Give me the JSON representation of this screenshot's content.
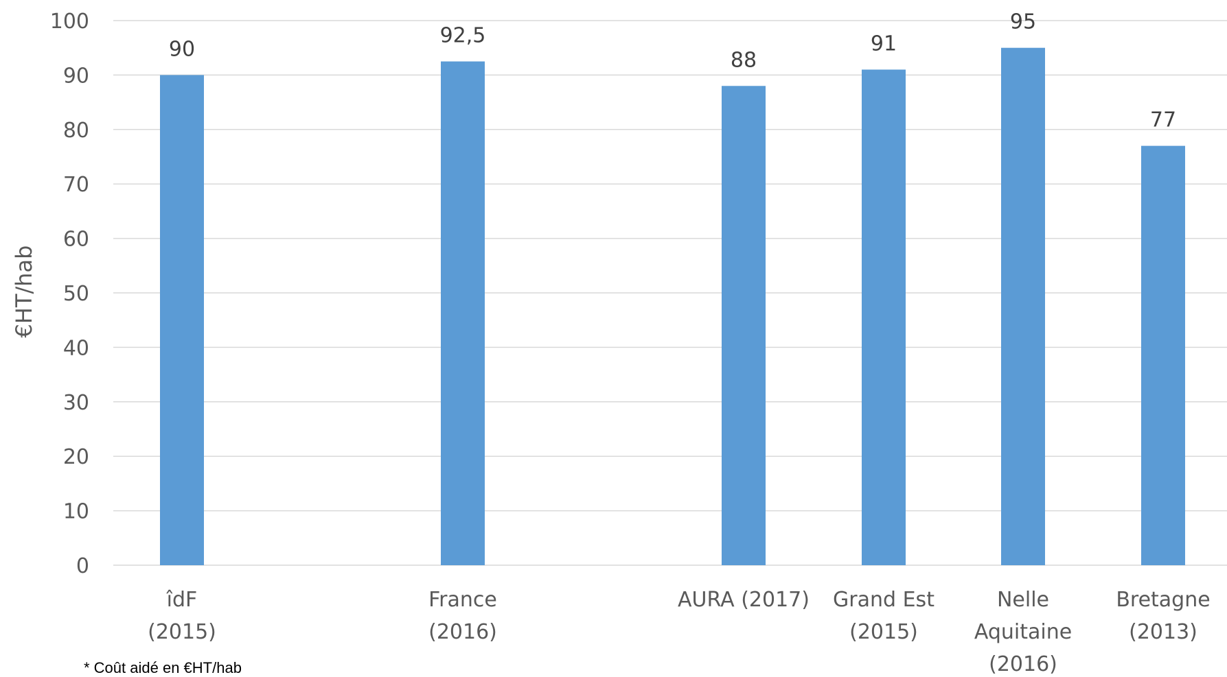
{
  "chart_data": {
    "type": "bar",
    "categories": [
      [
        "îdF",
        "(2015)"
      ],
      [
        "France",
        "(2016)"
      ],
      [
        "AURA (2017)"
      ],
      [
        "Grand Est",
        "(2015)"
      ],
      [
        "Nelle",
        "Aquitaine",
        "(2016)"
      ],
      [
        "Bretagne",
        "(2013)"
      ]
    ],
    "values": [
      90,
      92.5,
      88,
      91,
      95,
      77
    ],
    "data_labels": [
      "90",
      "92,5",
      "88",
      "91",
      "95",
      "77"
    ],
    "ylabel": "€HT/hab",
    "ylim": [
      0,
      100
    ],
    "yticks": [
      0,
      10,
      20,
      30,
      40,
      50,
      60,
      70,
      80,
      90,
      100
    ],
    "grid": true,
    "bar_color": "#5B9BD5",
    "grid_color": "#D9D9D9"
  },
  "footnote": "* Coût aidé en €HT/hab"
}
